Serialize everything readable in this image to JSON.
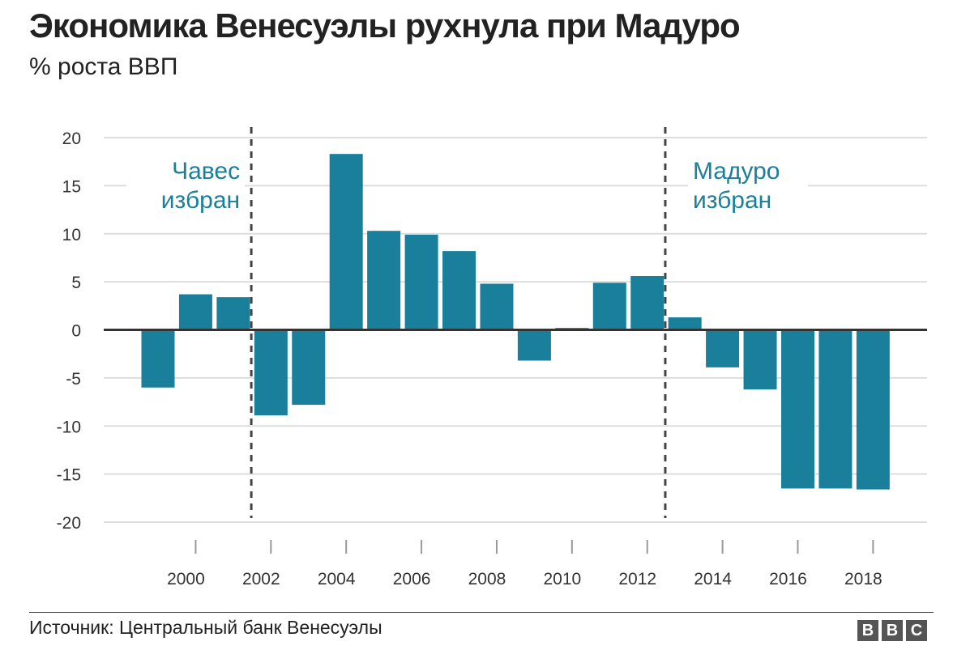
{
  "title": "Экономика Венесуэлы рухнула при Мадуро",
  "subtitle": "% роста ВВП",
  "source": "Источник: Центральный банк Венесуэлы",
  "logo": [
    "B",
    "B",
    "C"
  ],
  "colors": {
    "bar": "#1a7f9b",
    "annotation": "#1a7f9b",
    "zero_line": "#333333",
    "grid": "#dddddd",
    "marker": "#444444"
  },
  "chart_data": {
    "type": "bar",
    "title": "Экономика Венесуэлы рухнула при Мадуро",
    "ylabel": "% роста ВВП",
    "xlabel": "",
    "ylim": [
      -20,
      20
    ],
    "yticks": [
      20,
      15,
      10,
      5,
      0,
      -5,
      -10,
      -15,
      -20
    ],
    "yticks_labels": [
      "20",
      "15",
      "10",
      "5",
      "0",
      "-5",
      "-10",
      "-15",
      "-20"
    ],
    "xticks_labels": [
      "2000",
      "2002",
      "2004",
      "2006",
      "2008",
      "2010",
      "2012",
      "2014",
      "2016",
      "2018"
    ],
    "grid": true,
    "categories": [
      "1999",
      "2000",
      "2001",
      "2002",
      "2003",
      "2004",
      "2005",
      "2006",
      "2007",
      "2008",
      "2009",
      "2010",
      "2011",
      "2012",
      "2013",
      "2014",
      "2015",
      "2016",
      "2017",
      "2018"
    ],
    "values": [
      -6.0,
      3.7,
      3.4,
      -8.9,
      -7.8,
      18.3,
      10.3,
      9.9,
      8.2,
      4.8,
      -3.2,
      0.2,
      4.9,
      5.6,
      1.3,
      -3.9,
      -6.2,
      -16.5,
      -16.5,
      -16.6
    ],
    "annotations": [
      {
        "label": [
          "Чавес",
          "избран"
        ],
        "after_category": "2001"
      },
      {
        "label": [
          "Мадуро",
          "избран"
        ],
        "after_category": "2012"
      }
    ]
  }
}
